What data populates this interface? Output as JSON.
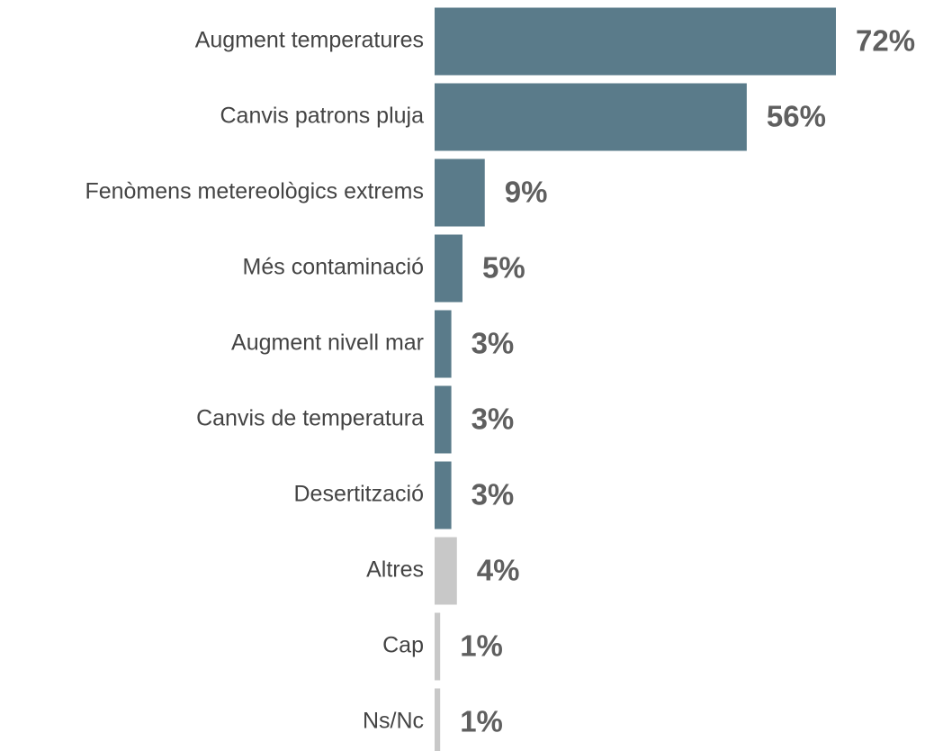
{
  "chart_data": {
    "type": "bar",
    "orientation": "horizontal",
    "categories": [
      "Augment temperatures",
      "Canvis patrons pluja",
      "Fenòmens metereològics extrems",
      "Més contaminació",
      "Augment nivell mar",
      "Canvis de temperatura",
      "Desertització",
      "Altres",
      "Cap",
      "Ns/Nc"
    ],
    "values": [
      72,
      56,
      9,
      5,
      3,
      3,
      3,
      4,
      1,
      1
    ],
    "value_labels": [
      "72%",
      "56%",
      "9%",
      "5%",
      "3%",
      "3%",
      "3%",
      "4%",
      "1%",
      "1%"
    ],
    "colors": [
      "#5a7b8a",
      "#5a7b8a",
      "#5a7b8a",
      "#5a7b8a",
      "#5a7b8a",
      "#5a7b8a",
      "#5a7b8a",
      "#c8c8c8",
      "#c8c8c8",
      "#c8c8c8"
    ]
  }
}
